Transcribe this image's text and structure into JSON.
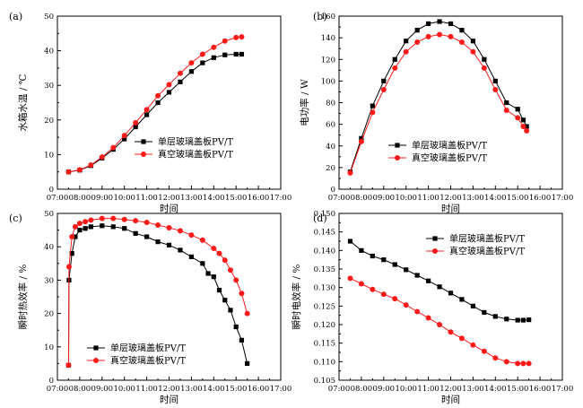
{
  "figure": {
    "x_axis_label": "时间",
    "x_ticks": [
      "07:00",
      "08:00",
      "09:00",
      "10:00",
      "11:00",
      "12:00",
      "13:00",
      "14:00",
      "15:00",
      "16:00",
      "17:00"
    ],
    "legend": [
      "单层玻璃盖板PV/T",
      "真空玻璃盖板PV/T"
    ],
    "colors": {
      "single": "#000000",
      "vacuum": "#ff1a1a"
    }
  },
  "chart_data": [
    {
      "panel": "(a)",
      "type": "line",
      "xlabel": "时间",
      "ylabel": "水箱水温 / ℃",
      "xlim": [
        7,
        17
      ],
      "ylim": [
        0,
        50
      ],
      "yticks": [
        "0",
        "10",
        "20",
        "30",
        "40",
        "50"
      ],
      "legend_position": "lower-right",
      "series": [
        {
          "name": "单层玻璃盖板PV/T",
          "marker": "square",
          "x": [
            7.5,
            8,
            8.5,
            9,
            9.5,
            10,
            10.5,
            11,
            11.5,
            12,
            12.5,
            13,
            13.5,
            14,
            14.5,
            15,
            15.25
          ],
          "y": [
            5,
            5.5,
            6.8,
            9,
            11.5,
            14.5,
            18,
            21.5,
            25,
            28,
            31,
            34,
            36.5,
            38,
            38.8,
            39,
            39
          ]
        },
        {
          "name": "真空玻璃盖板PV/T",
          "marker": "circle",
          "x": [
            7.5,
            8,
            8.5,
            9,
            9.5,
            10,
            10.5,
            11,
            11.5,
            12,
            12.5,
            13,
            13.5,
            14,
            14.5,
            15,
            15.25
          ],
          "y": [
            5,
            5.6,
            7,
            9.3,
            12,
            15.5,
            19.2,
            23,
            27,
            30.2,
            33.5,
            36.5,
            39,
            41,
            42.8,
            43.8,
            44
          ]
        }
      ]
    },
    {
      "panel": "(b)",
      "type": "line",
      "xlabel": "时间",
      "ylabel": "电功率 / W",
      "xlim": [
        7,
        17
      ],
      "ylim": [
        0,
        160
      ],
      "yticks": [
        "0",
        "20",
        "40",
        "60",
        "80",
        "100",
        "120",
        "140",
        "160"
      ],
      "legend_position": "lower-center",
      "series": [
        {
          "name": "单层玻璃盖板PV/T",
          "marker": "square",
          "x": [
            7.5,
            8,
            8.5,
            9,
            9.5,
            10,
            10.5,
            11,
            11.5,
            12,
            12.5,
            13,
            13.5,
            14,
            14.5,
            15,
            15.25,
            15.4
          ],
          "y": [
            16,
            47,
            77,
            100,
            120,
            137,
            147,
            153,
            155,
            153,
            147,
            137,
            120,
            100,
            80,
            74,
            64,
            58
          ]
        },
        {
          "name": "真空玻璃盖板PV/T",
          "marker": "circle",
          "x": [
            7.5,
            8,
            8.5,
            9,
            9.5,
            10,
            10.5,
            11,
            11.5,
            12,
            12.5,
            13,
            13.5,
            14,
            14.5,
            15,
            15.25,
            15.4
          ],
          "y": [
            15,
            44,
            71,
            92,
            112,
            127,
            136,
            141,
            143,
            141,
            136,
            127,
            112,
            92,
            73,
            66,
            58,
            54
          ]
        }
      ]
    },
    {
      "panel": "(c)",
      "type": "line",
      "xlabel": "时间",
      "ylabel": "瞬时热效率 / %",
      "xlim": [
        7,
        17
      ],
      "ylim": [
        0,
        50
      ],
      "yticks": [
        "0",
        "10",
        "20",
        "30",
        "40",
        "50"
      ],
      "legend_position": "lower-left",
      "series": [
        {
          "name": "单层玻璃盖板PV/T",
          "marker": "square",
          "x": [
            7.5,
            7.52,
            7.65,
            7.8,
            8,
            8.25,
            8.5,
            9,
            9.5,
            10,
            10.5,
            11,
            11.5,
            12,
            12.5,
            13,
            13.5,
            13.75,
            14,
            14.25,
            14.5,
            14.75,
            15,
            15.25,
            15.5
          ],
          "y": [
            4.5,
            30,
            38,
            43,
            45,
            45.5,
            46,
            46.3,
            46,
            45.5,
            44,
            43,
            41.5,
            40.5,
            39,
            37,
            35,
            32,
            31,
            27,
            24,
            21,
            16,
            12,
            5
          ]
        },
        {
          "name": "真空玻璃盖板PV/T",
          "marker": "circle",
          "x": [
            7.5,
            7.52,
            7.65,
            7.8,
            8,
            8.25,
            8.5,
            9,
            9.5,
            10,
            10.5,
            11,
            11.5,
            12,
            12.5,
            13,
            13.5,
            14,
            14.25,
            14.5,
            14.75,
            15,
            15.25,
            15.5
          ],
          "y": [
            4.5,
            34,
            43,
            46,
            47,
            47.5,
            48,
            48.5,
            48.5,
            48.2,
            47.8,
            47.3,
            46.5,
            45.7,
            44.8,
            43.5,
            42,
            39.5,
            38,
            36,
            33,
            30,
            26,
            20
          ]
        }
      ]
    },
    {
      "panel": "(d)",
      "type": "line",
      "xlabel": "时间",
      "ylabel": "瞬时电效率 / %",
      "xlim": [
        7,
        17
      ],
      "ylim": [
        0.105,
        0.15
      ],
      "yticks": [
        "0.105",
        "0.110",
        "0.115",
        "0.120",
        "0.125",
        "0.130",
        "0.135",
        "0.140",
        "0.145",
        "0.150"
      ],
      "legend_position": "top-right",
      "series": [
        {
          "name": "单层玻璃盖板PV/T",
          "marker": "square",
          "x": [
            7.5,
            8,
            8.5,
            9,
            9.5,
            10,
            10.5,
            11,
            11.5,
            12,
            12.5,
            13,
            13.5,
            14,
            14.5,
            15,
            15.25,
            15.5
          ],
          "y": [
            0.1425,
            0.14,
            0.1385,
            0.1375,
            0.1362,
            0.1348,
            0.1333,
            0.1318,
            0.1302,
            0.1285,
            0.1268,
            0.125,
            0.1233,
            0.1222,
            0.1215,
            0.1212,
            0.1212,
            0.1213
          ]
        },
        {
          "name": "真空玻璃盖板PV/T",
          "marker": "circle",
          "x": [
            7.5,
            8,
            8.5,
            9,
            9.5,
            10,
            10.5,
            11,
            11.5,
            12,
            12.5,
            13,
            13.5,
            14,
            14.5,
            15,
            15.25,
            15.5
          ],
          "y": [
            0.1325,
            0.131,
            0.1295,
            0.1282,
            0.127,
            0.1253,
            0.1235,
            0.1218,
            0.12,
            0.118,
            0.1163,
            0.1145,
            0.1128,
            0.111,
            0.11,
            0.1095,
            0.1095,
            0.1095
          ]
        }
      ]
    }
  ]
}
